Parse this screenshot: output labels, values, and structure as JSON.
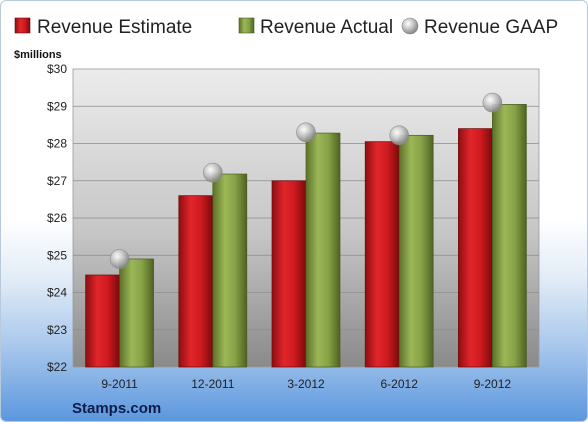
{
  "chart_data": {
    "type": "bar",
    "categories": [
      "9-2011",
      "12-2011",
      "3-2012",
      "6-2012",
      "9-2012"
    ],
    "series": [
      {
        "name": "Revenue Estimate",
        "kind": "bar",
        "color": "#c8161b",
        "values": [
          24.47,
          26.6,
          27.0,
          28.05,
          28.4
        ]
      },
      {
        "name": "Revenue Actual",
        "kind": "bar",
        "color": "#7f9a3f",
        "values": [
          24.9,
          27.18,
          28.28,
          28.22,
          29.05
        ]
      },
      {
        "name": "Revenue GAAP",
        "kind": "marker",
        "color": "#b5b5b5",
        "values": [
          24.9,
          27.22,
          28.3,
          28.22,
          29.1
        ]
      }
    ],
    "y_unit": "$millions",
    "y_ticks": [
      "$22",
      "$23",
      "$24",
      "$25",
      "$26",
      "$27",
      "$28",
      "$29",
      "$30"
    ],
    "ylim": [
      22,
      30
    ],
    "grid": true,
    "legend_position": "top",
    "title": "",
    "xlabel": "",
    "ylabel": ""
  },
  "source_label": "Stamps.com"
}
